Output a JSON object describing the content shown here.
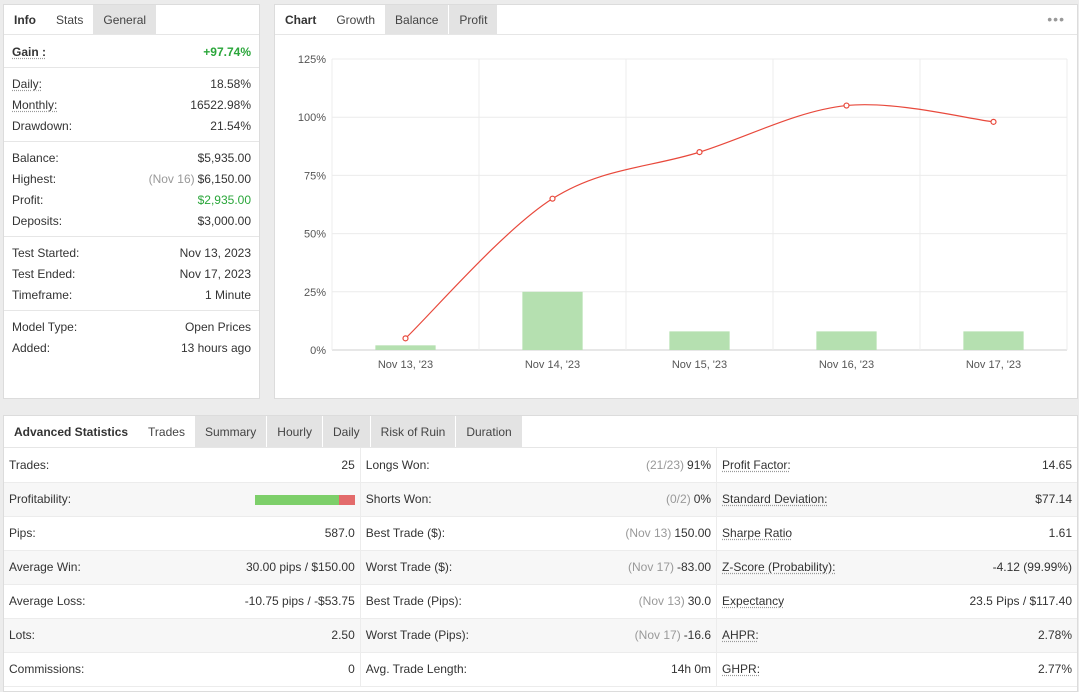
{
  "left_panel": {
    "tabs": [
      {
        "label": "Info"
      },
      {
        "label": "Stats"
      },
      {
        "label": "General"
      }
    ],
    "gain": {
      "label": "Gain :",
      "value": "+97.74%"
    },
    "group1": [
      {
        "label": "Daily:",
        "value": "18.58%"
      },
      {
        "label": "Monthly:",
        "value": "16522.98%"
      },
      {
        "label": "Drawdown:",
        "value": "21.54%"
      }
    ],
    "group2": [
      {
        "label": "Balance:",
        "value": "$5,935.00"
      },
      {
        "label": "Highest:",
        "prefix": "(Nov 16)",
        "value": "$6,150.00"
      },
      {
        "label": "Profit:",
        "value": "$2,935.00"
      },
      {
        "label": "Deposits:",
        "value": "$3,000.00"
      }
    ],
    "group3": [
      {
        "label": "Test Started:",
        "value": "Nov 13, 2023"
      },
      {
        "label": "Test Ended:",
        "value": "Nov 17, 2023"
      },
      {
        "label": "Timeframe:",
        "value": "1 Minute"
      }
    ],
    "group4": [
      {
        "label": "Model Type:",
        "value": "Open Prices"
      },
      {
        "label": "Added:",
        "value": "13 hours ago"
      }
    ]
  },
  "chart_panel": {
    "tabs": [
      {
        "label": "Chart"
      },
      {
        "label": "Growth"
      },
      {
        "label": "Balance"
      },
      {
        "label": "Profit"
      }
    ],
    "more_icon": "more-dots-icon"
  },
  "chart_data": {
    "type": "line",
    "categories": [
      "Nov 13, '23",
      "Nov 14, '23",
      "Nov 15, '23",
      "Nov 16, '23",
      "Nov 17, '23"
    ],
    "y_ticks": [
      "0%",
      "25%",
      "50%",
      "75%",
      "100%",
      "125%"
    ],
    "ylim": [
      0,
      125
    ],
    "grid": true,
    "series": [
      {
        "kind": "line",
        "color": "#e8493c",
        "values": [
          5,
          65,
          85,
          105,
          98
        ]
      },
      {
        "kind": "bar",
        "color": "#b5e0b0",
        "values": [
          2,
          25,
          8,
          8,
          8
        ]
      }
    ]
  },
  "bottom_panel": {
    "tabs": [
      {
        "label": "Advanced Statistics"
      },
      {
        "label": "Trades"
      },
      {
        "label": "Summary"
      },
      {
        "label": "Hourly"
      },
      {
        "label": "Daily"
      },
      {
        "label": "Risk of Ruin"
      },
      {
        "label": "Duration"
      }
    ],
    "rows": [
      {
        "c1k": "Trades:",
        "c1v": "25",
        "c2k": "Longs Won:",
        "c2p": "(21/23)",
        "c2v": "91%",
        "c3k": "Profit Factor:",
        "c3v": "14.65"
      },
      {
        "c1k": "Profitability:",
        "c1v": "",
        "c2k": "Shorts Won:",
        "c2p": "(0/2)",
        "c2v": "0%",
        "c3k": "Standard Deviation:",
        "c3v": "$77.14"
      },
      {
        "c1k": "Pips:",
        "c1v": "587.0",
        "c2k": "Best Trade ($):",
        "c2p": "(Nov 13)",
        "c2v": "150.00",
        "c3k": "Sharpe Ratio",
        "c3v": "1.61"
      },
      {
        "c1k": "Average Win:",
        "c1v": "30.00 pips / $150.00",
        "c2k": "Worst Trade ($):",
        "c2p": "(Nov 17)",
        "c2v": "-83.00",
        "c3k": "Z-Score (Probability):",
        "c3v": "-4.12 (99.99%)"
      },
      {
        "c1k": "Average Loss:",
        "c1v": "-10.75 pips / -$53.75",
        "c2k": "Best Trade (Pips):",
        "c2p": "(Nov 13)",
        "c2v": "30.0",
        "c3k": "Expectancy",
        "c3v": "23.5 Pips / $117.40"
      },
      {
        "c1k": "Lots:",
        "c1v": "2.50",
        "c2k": "Worst Trade (Pips):",
        "c2p": "(Nov 17)",
        "c2v": "-16.6",
        "c3k": "AHPR:",
        "c3v": "2.78%"
      },
      {
        "c1k": "Commissions:",
        "c1v": "0",
        "c2k": "Avg. Trade Length:",
        "c2p": "",
        "c2v": "14h 0m",
        "c3k": "GHPR:",
        "c3v": "2.77%"
      }
    ],
    "profitability": {
      "win_fraction": 0.84,
      "win_color": "#7dcf6a",
      "loss_color": "#e36b6b"
    }
  }
}
